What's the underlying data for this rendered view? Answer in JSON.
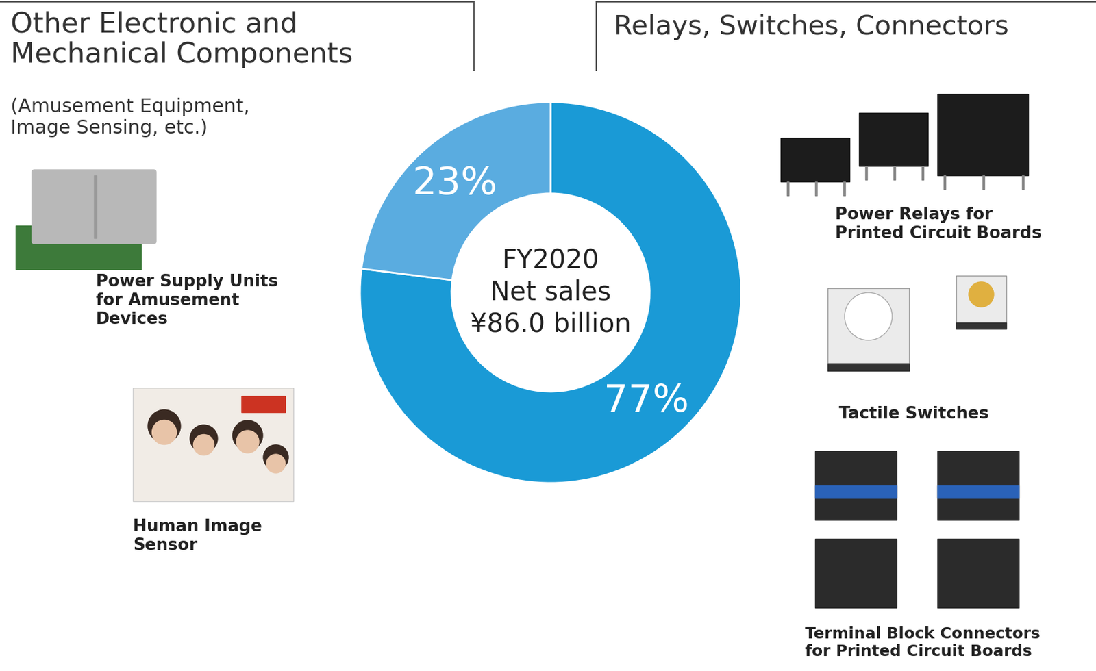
{
  "chart_data": {
    "type": "pie",
    "center_text": "FY2020\nNet sales\n¥86.0 billion",
    "categories": [
      "Relays, Switches, Connectors",
      "Other Electronic and\nMechanical Components"
    ],
    "values": [
      77,
      23
    ],
    "value_labels": [
      "77%",
      "23%"
    ],
    "colors": [
      "#1a9ad6",
      "#5aace0"
    ],
    "data_labels": true,
    "subtitle": "(Amusement Equipment,\nImage Sensing, etc.)",
    "products": {
      "relays": [
        "Power Relays for\nPrinted Circuit Boards",
        "Tactile Switches",
        "Terminal Block Connectors\nfor Printed Circuit Boards"
      ],
      "other": [
        "Power Supply Units\nfor Amusement\nDevices",
        "Human Image\nSensor"
      ]
    }
  }
}
